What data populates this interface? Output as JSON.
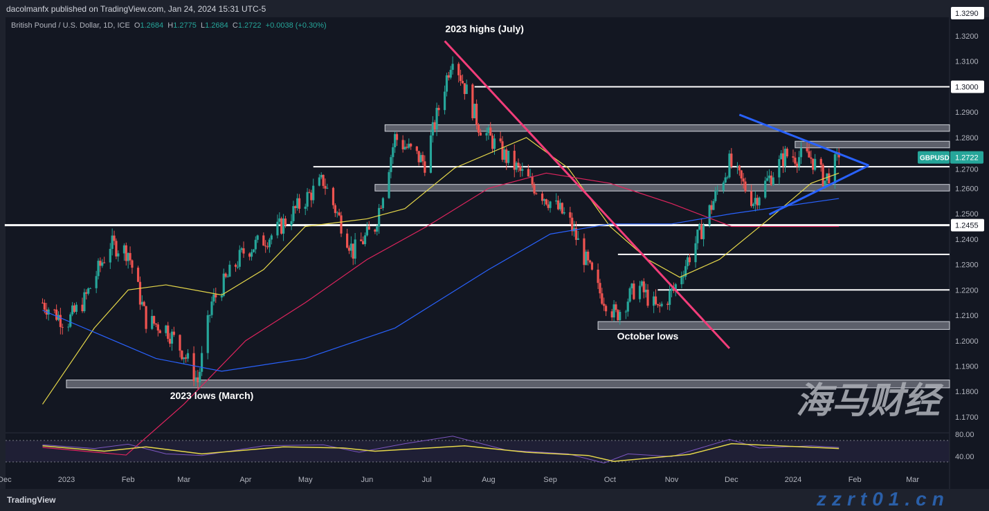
{
  "header": {
    "published": "dacolmanfx published on TradingView.com, Jan 24, 2024 15:31 UTC-5"
  },
  "legend": {
    "symbol": "British Pound / U.S. Dollar, 1D, ICE",
    "o_label": "O",
    "o": "1.2684",
    "h_label": "H",
    "h": "1.2775",
    "l_label": "L",
    "l": "1.2684",
    "c_label": "C",
    "c": "1.2722",
    "change": "+0.0038 (+0.30%)"
  },
  "footer": {
    "brand": "TradingView"
  },
  "watermark": {
    "cn": "海马财经",
    "url": "zzrt01.cn"
  },
  "chart_data": {
    "type": "candlestick",
    "symbol_tag": "GBPUSD",
    "last_price": "1.2722",
    "ylim": [
      1.165,
      1.329
    ],
    "y_ticks": [
      "1.3290",
      "1.3200",
      "1.3100",
      "1.3000",
      "1.2900",
      "1.2800",
      "1.2700",
      "1.2600",
      "1.2500",
      "1.2455",
      "1.2400",
      "1.2300",
      "1.2200",
      "1.2100",
      "1.2000",
      "1.1900",
      "1.1800",
      "1.1700"
    ],
    "highlight_ticks": [
      "1.3290",
      "1.3000",
      "1.2455"
    ],
    "x_ticks": [
      {
        "label": "Dec",
        "date": "2022-12-01"
      },
      {
        "label": "2023",
        "date": "2023-01-01"
      },
      {
        "label": "Feb",
        "date": "2023-02-01"
      },
      {
        "label": "Mar",
        "date": "2023-03-01"
      },
      {
        "label": "Apr",
        "date": "2023-04-01"
      },
      {
        "label": "May",
        "date": "2023-05-01"
      },
      {
        "label": "Jun",
        "date": "2023-06-01"
      },
      {
        "label": "Jul",
        "date": "2023-07-01"
      },
      {
        "label": "Aug",
        "date": "2023-08-01"
      },
      {
        "label": "Sep",
        "date": "2023-09-01"
      },
      {
        "label": "Oct",
        "date": "2023-10-01"
      },
      {
        "label": "Nov",
        "date": "2023-11-01"
      },
      {
        "label": "Dec",
        "date": "2023-12-01"
      },
      {
        "label": "2024",
        "date": "2024-01-01"
      },
      {
        "label": "Feb",
        "date": "2024-02-01"
      },
      {
        "label": "Mar",
        "date": "2024-03-01"
      }
    ],
    "closes": [
      [
        "2022-12-20",
        1.215
      ],
      [
        "2023-01-01",
        1.207
      ],
      [
        "2023-01-10",
        1.216
      ],
      [
        "2023-01-23",
        1.238
      ],
      [
        "2023-02-01",
        1.235
      ],
      [
        "2023-02-10",
        1.208
      ],
      [
        "2023-02-20",
        1.205
      ],
      [
        "2023-03-01",
        1.195
      ],
      [
        "2023-03-08",
        1.184
      ],
      [
        "2023-03-15",
        1.215
      ],
      [
        "2023-03-31",
        1.235
      ],
      [
        "2023-04-15",
        1.242
      ],
      [
        "2023-04-30",
        1.255
      ],
      [
        "2023-05-10",
        1.263
      ],
      [
        "2023-05-25",
        1.235
      ],
      [
        "2023-06-05",
        1.245
      ],
      [
        "2023-06-15",
        1.28
      ],
      [
        "2023-06-30",
        1.27
      ],
      [
        "2023-07-14",
        1.313
      ],
      [
        "2023-07-27",
        1.285
      ],
      [
        "2023-08-10",
        1.272
      ],
      [
        "2023-08-25",
        1.26
      ],
      [
        "2023-09-10",
        1.248
      ],
      [
        "2023-09-25",
        1.22
      ],
      [
        "2023-10-04",
        1.21
      ],
      [
        "2023-10-15",
        1.222
      ],
      [
        "2023-10-25",
        1.212
      ],
      [
        "2023-11-02",
        1.22
      ],
      [
        "2023-11-15",
        1.242
      ],
      [
        "2023-11-30",
        1.27
      ],
      [
        "2023-12-12",
        1.255
      ],
      [
        "2023-12-28",
        1.273
      ],
      [
        "2024-01-10",
        1.272
      ],
      [
        "2024-01-17",
        1.263
      ],
      [
        "2024-01-24",
        1.2722
      ]
    ],
    "moving_averages": [
      {
        "color": "#e6d84a",
        "points": [
          [
            "2022-12-20",
            1.175
          ],
          [
            "2023-01-15",
            1.205
          ],
          [
            "2023-02-01",
            1.22
          ],
          [
            "2023-02-20",
            1.222
          ],
          [
            "2023-03-20",
            1.218
          ],
          [
            "2023-04-10",
            1.228
          ],
          [
            "2023-05-01",
            1.245
          ],
          [
            "2023-06-01",
            1.248
          ],
          [
            "2023-06-20",
            1.252
          ],
          [
            "2023-07-15",
            1.268
          ],
          [
            "2023-08-20",
            1.28
          ],
          [
            "2023-09-10",
            1.268
          ],
          [
            "2023-10-01",
            1.245
          ],
          [
            "2023-10-20",
            1.232
          ],
          [
            "2023-11-05",
            1.225
          ],
          [
            "2023-11-25",
            1.232
          ],
          [
            "2023-12-20",
            1.248
          ],
          [
            "2024-01-10",
            1.262
          ],
          [
            "2024-01-24",
            1.266
          ]
        ]
      },
      {
        "color": "#e0245e",
        "points": [
          [
            "2022-12-20",
            1.158
          ],
          [
            "2023-01-31",
            1.155
          ],
          [
            "2023-03-01",
            1.175
          ],
          [
            "2023-04-01",
            1.2
          ],
          [
            "2023-05-01",
            1.215
          ],
          [
            "2023-06-01",
            1.232
          ],
          [
            "2023-07-01",
            1.245
          ],
          [
            "2023-08-01",
            1.26
          ],
          [
            "2023-08-30",
            1.266
          ],
          [
            "2023-10-01",
            1.262
          ],
          [
            "2023-11-01",
            1.254
          ],
          [
            "2023-12-01",
            1.245
          ],
          [
            "2024-01-24",
            1.245
          ]
        ]
      },
      {
        "color": "#2962ff",
        "points": [
          [
            "2022-12-20",
            1.212
          ],
          [
            "2023-02-15",
            1.193
          ],
          [
            "2023-03-20",
            1.188
          ],
          [
            "2023-05-01",
            1.193
          ],
          [
            "2023-06-15",
            1.205
          ],
          [
            "2023-08-01",
            1.228
          ],
          [
            "2023-09-01",
            1.242
          ],
          [
            "2023-10-01",
            1.246
          ],
          [
            "2023-11-01",
            1.246
          ],
          [
            "2023-12-01",
            1.25
          ],
          [
            "2024-01-24",
            1.256
          ]
        ]
      }
    ],
    "levels": [
      {
        "price": 1.3,
        "from": "2023-07-25"
      },
      {
        "price": 1.2685,
        "from": "2023-05-05"
      },
      {
        "price": 1.2455,
        "from": "2022-12-01"
      },
      {
        "price": 1.234,
        "from": "2023-10-05"
      },
      {
        "price": 1.22,
        "from": "2023-10-25"
      }
    ],
    "zones": [
      {
        "low": 1.283,
        "high": 1.2845,
        "from": "2023-06-10"
      },
      {
        "low": 1.2765,
        "high": 1.278,
        "from": "2024-01-02"
      },
      {
        "low": 1.2595,
        "high": 1.261,
        "from": "2023-06-05"
      },
      {
        "low": 1.205,
        "high": 1.207,
        "from": "2023-09-25"
      },
      {
        "low": 1.182,
        "high": 1.184,
        "from": "2023-01-01"
      }
    ],
    "trendlines": [
      {
        "color": "#f23d7a",
        "from": [
          "2023-07-10",
          1.318
        ],
        "to": [
          "2023-11-30",
          1.197
        ]
      },
      {
        "color": "#2962ff",
        "from": [
          "2023-12-05",
          1.289
        ],
        "to": [
          "2024-02-08",
          1.269
        ]
      },
      {
        "color": "#2962ff",
        "from": [
          "2023-12-20",
          1.2497
        ],
        "to": [
          "2024-02-08",
          1.269
        ]
      }
    ],
    "annotations": [
      {
        "text": "2023 highs (July)",
        "date": "2023-07-30",
        "price": 1.3215
      },
      {
        "text": "October lows",
        "date": "2023-10-20",
        "price": 1.2005
      },
      {
        "text": "2023 lows (March)",
        "date": "2023-03-15",
        "price": 1.177
      }
    ],
    "rsi": {
      "ticks": [
        "80.00",
        "40.00"
      ],
      "values": [
        [
          "2022-12-20",
          62
        ],
        [
          "2023-01-15",
          55
        ],
        [
          "2023-02-01",
          63
        ],
        [
          "2023-02-20",
          45
        ],
        [
          "2023-03-10",
          42
        ],
        [
          "2023-04-10",
          60
        ],
        [
          "2023-05-10",
          62
        ],
        [
          "2023-05-28",
          48
        ],
        [
          "2023-06-20",
          64
        ],
        [
          "2023-07-14",
          78
        ],
        [
          "2023-08-10",
          52
        ],
        [
          "2023-09-10",
          45
        ],
        [
          "2023-09-28",
          28
        ],
        [
          "2023-10-10",
          45
        ],
        [
          "2023-11-01",
          40
        ],
        [
          "2023-11-30",
          72
        ],
        [
          "2023-12-15",
          56
        ],
        [
          "2024-01-10",
          60
        ],
        [
          "2024-01-24",
          57
        ]
      ],
      "signal": [
        [
          "2022-12-20",
          60
        ],
        [
          "2023-01-20",
          50
        ],
        [
          "2023-02-10",
          58
        ],
        [
          "2023-03-10",
          45
        ],
        [
          "2023-04-20",
          58
        ],
        [
          "2023-05-20",
          56
        ],
        [
          "2023-06-05",
          50
        ],
        [
          "2023-07-20",
          60
        ],
        [
          "2023-08-20",
          48
        ],
        [
          "2023-09-20",
          42
        ],
        [
          "2023-10-03",
          31
        ],
        [
          "2023-11-10",
          44
        ],
        [
          "2023-12-01",
          64
        ],
        [
          "2024-01-24",
          55
        ]
      ]
    }
  }
}
